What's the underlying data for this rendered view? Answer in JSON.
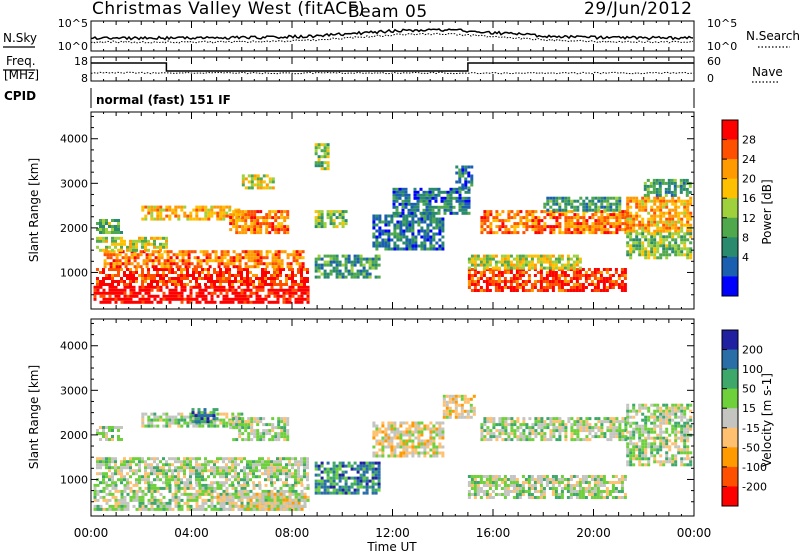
{
  "header": {
    "title": "Christmas Valley West (fitACF)",
    "beam": "Beam 05",
    "date": "29/Jun/2012"
  },
  "panels": {
    "nsky_label": "N.Sky",
    "nsearch_label": "N.Search",
    "freq_label_line1": "Freq.",
    "freq_label_line2": "[MHz]",
    "nave_label": "Nave",
    "cpid_label": "CPID",
    "cpid_text": "normal (fast) 151 IF",
    "noise_left_ticks": [
      "10^5",
      "10^0"
    ],
    "noise_right_ticks": [
      "10^5",
      "10^0"
    ],
    "freq_left_ticks": [
      "18",
      "8"
    ],
    "freq_right_ticks": [
      "60",
      "0"
    ]
  },
  "axes": {
    "ylabel": "Slant Range [km]",
    "xlabel": "Time UT",
    "x_ticks": [
      "00:00",
      "04:00",
      "08:00",
      "12:00",
      "16:00",
      "20:00",
      "00:00"
    ],
    "y_ticks": [
      "1000",
      "2000",
      "3000",
      "4000"
    ]
  },
  "chart_data": [
    {
      "type": "heatmap",
      "name": "power",
      "colorbar_label": "Power [dB]",
      "colorbar_ticks": [
        "28",
        "24",
        "20",
        "16",
        "12",
        "8",
        "4"
      ],
      "colorbar_colors": [
        "#ff0000",
        "#ff5000",
        "#ff9a00",
        "#ffc000",
        "#9ed13b",
        "#4fa84c",
        "#2a8a6e",
        "#1a5fb0",
        "#0000ff"
      ],
      "xlim_hours": [
        0,
        24
      ],
      "ylim_km": [
        180,
        4600
      ],
      "regions": [
        {
          "t0": 0.1,
          "t1": 8.7,
          "r0": 350,
          "r1": 700,
          "lvl": 8
        },
        {
          "t0": 0.2,
          "t1": 8.6,
          "r0": 700,
          "r1": 1100,
          "lvl": 7
        },
        {
          "t0": 0.5,
          "t1": 8.5,
          "r0": 1100,
          "r1": 1500,
          "lvl": 6
        },
        {
          "t0": 0.2,
          "t1": 3.0,
          "r0": 1500,
          "r1": 1800,
          "lvl": 4
        },
        {
          "t0": 0.2,
          "t1": 1.2,
          "r0": 1900,
          "r1": 2200,
          "lvl": 3
        },
        {
          "t0": 2.0,
          "t1": 6.0,
          "r0": 2200,
          "r1": 2500,
          "lvl": 5
        },
        {
          "t0": 5.5,
          "t1": 7.8,
          "r0": 1900,
          "r1": 2400,
          "lvl": 6
        },
        {
          "t0": 6.0,
          "t1": 7.2,
          "r0": 2900,
          "r1": 3200,
          "lvl": 4
        },
        {
          "t0": 8.9,
          "t1": 9.4,
          "r0": 3300,
          "r1": 3900,
          "lvl": 3
        },
        {
          "t0": 8.9,
          "t1": 10.2,
          "r0": 2000,
          "r1": 2400,
          "lvl": 3
        },
        {
          "t0": 8.9,
          "t1": 11.5,
          "r0": 900,
          "r1": 1400,
          "lvl": 2
        },
        {
          "t0": 11.2,
          "t1": 14.0,
          "r0": 1500,
          "r1": 2300,
          "lvl": 1
        },
        {
          "t0": 12.0,
          "t1": 15.0,
          "r0": 2300,
          "r1": 2900,
          "lvl": 1
        },
        {
          "t0": 14.5,
          "t1": 15.2,
          "r0": 2900,
          "r1": 3400,
          "lvl": 1
        },
        {
          "t0": 15.0,
          "t1": 21.3,
          "r0": 600,
          "r1": 1100,
          "lvl": 7
        },
        {
          "t0": 15.0,
          "t1": 19.5,
          "r0": 1100,
          "r1": 1400,
          "lvl": 4
        },
        {
          "t0": 15.5,
          "t1": 21.3,
          "r0": 1900,
          "r1": 2400,
          "lvl": 6
        },
        {
          "t0": 18.0,
          "t1": 21.0,
          "r0": 2400,
          "r1": 2700,
          "lvl": 2
        },
        {
          "t0": 21.3,
          "t1": 23.9,
          "r0": 1900,
          "r1": 2700,
          "lvl": 5
        },
        {
          "t0": 21.3,
          "t1": 23.9,
          "r0": 1300,
          "r1": 1900,
          "lvl": 3
        },
        {
          "t0": 22.0,
          "t1": 23.9,
          "r0": 2700,
          "r1": 3100,
          "lvl": 2
        }
      ]
    },
    {
      "type": "heatmap",
      "name": "velocity",
      "colorbar_label": "Velocity [m s-1]",
      "colorbar_ticks": [
        "200",
        "100",
        "50",
        "15",
        "-15",
        "-50",
        "-100",
        "-200"
      ],
      "colorbar_colors": [
        "#2020a0",
        "#2a6ea8",
        "#3da86a",
        "#6ed13b",
        "#c4c4c0",
        "#ffc070",
        "#ff9a00",
        "#ff5000",
        "#ff0000"
      ],
      "xlim_hours": [
        0,
        24
      ],
      "ylim_km": [
        180,
        4600
      ],
      "regions": [
        {
          "t0": 0.1,
          "t1": 8.7,
          "r0": 350,
          "r1": 900,
          "lvl": 4
        },
        {
          "t0": 0.2,
          "t1": 8.6,
          "r0": 900,
          "r1": 1500,
          "lvl": 4
        },
        {
          "t0": 5.0,
          "t1": 8.5,
          "r0": 350,
          "r1": 700,
          "lvl": 3
        },
        {
          "t0": 2.0,
          "t1": 6.0,
          "r0": 2200,
          "r1": 2500,
          "lvl": 4
        },
        {
          "t0": 5.5,
          "t1": 7.8,
          "r0": 1900,
          "r1": 2400,
          "lvl": 4
        },
        {
          "t0": 4.0,
          "t1": 5.0,
          "r0": 2300,
          "r1": 2600,
          "lvl": 6
        },
        {
          "t0": 0.2,
          "t1": 1.2,
          "r0": 1900,
          "r1": 2200,
          "lvl": 4
        },
        {
          "t0": 8.9,
          "t1": 11.5,
          "r0": 700,
          "r1": 1400,
          "lvl": 6
        },
        {
          "t0": 11.2,
          "t1": 14.0,
          "r0": 1500,
          "r1": 2300,
          "lvl": 3
        },
        {
          "t0": 14.0,
          "t1": 15.2,
          "r0": 2400,
          "r1": 2900,
          "lvl": 3
        },
        {
          "t0": 15.0,
          "t1": 21.3,
          "r0": 600,
          "r1": 1100,
          "lvl": 4
        },
        {
          "t0": 15.5,
          "t1": 21.3,
          "r0": 1900,
          "r1": 2400,
          "lvl": 4
        },
        {
          "t0": 21.3,
          "t1": 23.9,
          "r0": 1900,
          "r1": 2700,
          "lvl": 4
        },
        {
          "t0": 21.3,
          "t1": 23.9,
          "r0": 1300,
          "r1": 1900,
          "lvl": 4
        }
      ]
    }
  ]
}
